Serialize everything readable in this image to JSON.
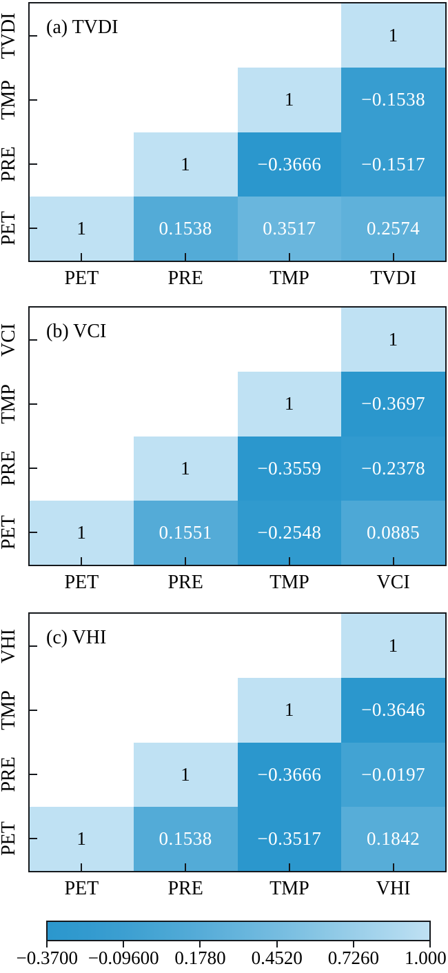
{
  "figure": {
    "background": "#ffffff",
    "description": "Triangular correlation heatmaps between drought indices and climate factors"
  },
  "chart_data": [
    {
      "type": "heatmap",
      "title": "(a) TVDI",
      "x_categories": [
        "PET",
        "PRE",
        "TMP",
        "TVDI"
      ],
      "y_categories_top_to_bottom": [
        "TVDI",
        "TMP",
        "PRE",
        "PET"
      ],
      "cells": [
        {
          "row": "TVDI",
          "col": "TVDI",
          "value": 1,
          "label": "1"
        },
        {
          "row": "TMP",
          "col": "TMP",
          "value": 1,
          "label": "1"
        },
        {
          "row": "TMP",
          "col": "TVDI",
          "value": -0.1538,
          "label": "−0.1538"
        },
        {
          "row": "PRE",
          "col": "PRE",
          "value": 1,
          "label": "1"
        },
        {
          "row": "PRE",
          "col": "TMP",
          "value": -0.3666,
          "label": "−0.3666"
        },
        {
          "row": "PRE",
          "col": "TVDI",
          "value": -0.1517,
          "label": "−0.1517"
        },
        {
          "row": "PET",
          "col": "PET",
          "value": 1,
          "label": "1"
        },
        {
          "row": "PET",
          "col": "PRE",
          "value": 0.1538,
          "label": "0.1538"
        },
        {
          "row": "PET",
          "col": "TMP",
          "value": 0.3517,
          "label": "0.3517"
        },
        {
          "row": "PET",
          "col": "TVDI",
          "value": 0.2574,
          "label": "0.2574"
        }
      ]
    },
    {
      "type": "heatmap",
      "title": "(b) VCI",
      "x_categories": [
        "PET",
        "PRE",
        "TMP",
        "VCI"
      ],
      "y_categories_top_to_bottom": [
        "VCI",
        "TMP",
        "PRE",
        "PET"
      ],
      "cells": [
        {
          "row": "VCI",
          "col": "VCI",
          "value": 1,
          "label": "1"
        },
        {
          "row": "TMP",
          "col": "TMP",
          "value": 1,
          "label": "1"
        },
        {
          "row": "TMP",
          "col": "VCI",
          "value": -0.3697,
          "label": "−0.3697"
        },
        {
          "row": "PRE",
          "col": "PRE",
          "value": 1,
          "label": "1"
        },
        {
          "row": "PRE",
          "col": "TMP",
          "value": -0.3559,
          "label": "−0.3559"
        },
        {
          "row": "PRE",
          "col": "VCI",
          "value": -0.2378,
          "label": "−0.2378"
        },
        {
          "row": "PET",
          "col": "PET",
          "value": 1,
          "label": "1"
        },
        {
          "row": "PET",
          "col": "PRE",
          "value": 0.1551,
          "label": "0.1551"
        },
        {
          "row": "PET",
          "col": "TMP",
          "value": -0.2548,
          "label": "−0.2548"
        },
        {
          "row": "PET",
          "col": "VCI",
          "value": 0.0885,
          "label": "0.0885"
        }
      ]
    },
    {
      "type": "heatmap",
      "title": "(c) VHI",
      "x_categories": [
        "PET",
        "PRE",
        "TMP",
        "VHI"
      ],
      "y_categories_top_to_bottom": [
        "VHI",
        "TMP",
        "PRE",
        "PET"
      ],
      "cells": [
        {
          "row": "VHI",
          "col": "VHI",
          "value": 1,
          "label": "1"
        },
        {
          "row": "TMP",
          "col": "TMP",
          "value": 1,
          "label": "1"
        },
        {
          "row": "TMP",
          "col": "VHI",
          "value": -0.3646,
          "label": "−0.3646"
        },
        {
          "row": "PRE",
          "col": "PRE",
          "value": 1,
          "label": "1"
        },
        {
          "row": "PRE",
          "col": "TMP",
          "value": -0.3666,
          "label": "−0.3666"
        },
        {
          "row": "PRE",
          "col": "VHI",
          "value": -0.0197,
          "label": "−0.0197"
        },
        {
          "row": "PET",
          "col": "PET",
          "value": 1,
          "label": "1"
        },
        {
          "row": "PET",
          "col": "PRE",
          "value": 0.1538,
          "label": "0.1538"
        },
        {
          "row": "PET",
          "col": "TMP",
          "value": -0.3517,
          "label": "−0.3517"
        },
        {
          "row": "PET",
          "col": "VHI",
          "value": 0.1842,
          "label": "0.1842"
        }
      ]
    }
  ],
  "colorbar": {
    "min": -0.37,
    "max": 1.0,
    "tick_labels": [
      "−0.3700",
      "−0.09600",
      "0.1780",
      "0.4520",
      "0.7260",
      "1.000"
    ],
    "color_min": "#2B97CD",
    "color_max": "#BFE1F3"
  }
}
